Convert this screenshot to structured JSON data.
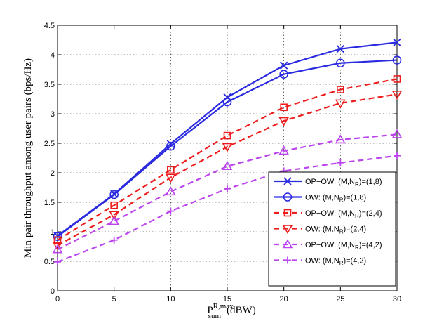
{
  "chart_data": {
    "type": "line",
    "xlabel": "P_sum^{R,max} (dBW)",
    "xlabel_main": "P",
    "xlabel_sup": "R,max",
    "xlabel_sub": "sum",
    "xlabel_unit": "(dBW)",
    "ylabel": "Min pair throughput among user pairs (bps/Hz)",
    "xlim": [
      0,
      30
    ],
    "ylim": [
      0,
      4.5
    ],
    "xticks": [
      0,
      5,
      10,
      15,
      20,
      25,
      30
    ],
    "yticks": [
      0,
      0.5,
      1,
      1.5,
      2,
      2.5,
      3,
      3.5,
      4,
      4.5
    ],
    "grid": true,
    "legend_position": "right",
    "x": [
      0,
      5,
      10,
      15,
      20,
      25,
      30
    ],
    "series": [
      {
        "name": "OP−OW: (M,N_R)=(1,8)",
        "label_prefix": "OP−OW: (M,N",
        "label_sub": "R",
        "label_suffix": ")=(1,8)",
        "color": "#2a2ae0",
        "dash": "solid",
        "marker": "x",
        "values": [
          0.93,
          1.64,
          2.49,
          3.28,
          3.82,
          4.1,
          4.21
        ]
      },
      {
        "name": "OW: (M,N_R)=(1,8)",
        "label_prefix": "OW: (M,N",
        "label_sub": "R",
        "label_suffix": ")=(1,8)",
        "color": "#2a2ae0",
        "dash": "solid",
        "marker": "circle",
        "values": [
          0.92,
          1.63,
          2.45,
          3.2,
          3.67,
          3.86,
          3.91
        ]
      },
      {
        "name": "OP−OW: (M,N_R)=(2,4)",
        "label_prefix": "OP−OW: (M,N",
        "label_sub": "R",
        "label_suffix": ")=(2,4)",
        "color": "#ee1c1c",
        "dash": "dashed",
        "marker": "square",
        "values": [
          0.86,
          1.45,
          2.05,
          2.63,
          3.11,
          3.41,
          3.59
        ]
      },
      {
        "name": "OW: (M,N_R)=(2,4)",
        "label_prefix": "OW: (M,N",
        "label_sub": "R",
        "label_suffix": ")=(2,4)",
        "color": "#ee1c1c",
        "dash": "dashed",
        "marker": "triangle-down",
        "values": [
          0.77,
          1.29,
          1.92,
          2.44,
          2.88,
          3.18,
          3.33
        ]
      },
      {
        "name": "OP−OW: (M,N_R)=(4,2)",
        "label_prefix": "OP−OW: (M,N",
        "label_sub": "R",
        "label_suffix": ")=(4,2)",
        "color": "#bb44ee",
        "dash": "dashed",
        "marker": "triangle-up",
        "values": [
          0.7,
          1.18,
          1.68,
          2.11,
          2.37,
          2.56,
          2.65
        ]
      },
      {
        "name": "OW: (M,N_R)=(4,2)",
        "label_prefix": "OW: (M,N",
        "label_sub": "R",
        "label_suffix": ")=(4,2)",
        "color": "#bb44ee",
        "dash": "dashed",
        "marker": "plus",
        "values": [
          0.49,
          0.86,
          1.35,
          1.73,
          2.03,
          2.17,
          2.29
        ]
      }
    ]
  }
}
